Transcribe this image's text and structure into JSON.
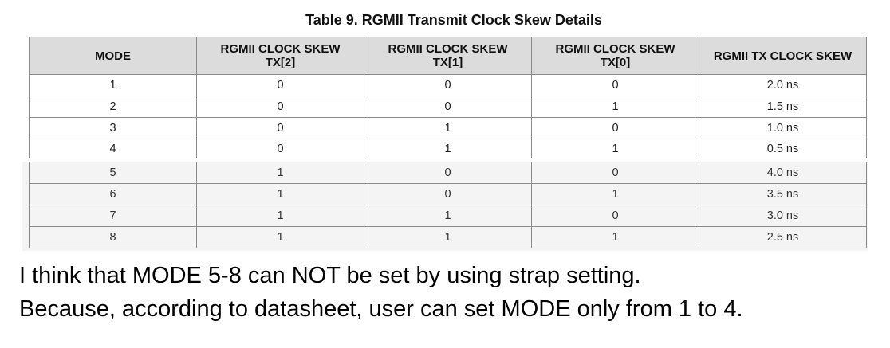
{
  "table": {
    "title": "Table 9. RGMII Transmit Clock Skew Details",
    "headers": [
      "MODE",
      "RGMII CLOCK SKEW TX[2]",
      "RGMII CLOCK SKEW TX[1]",
      "RGMII CLOCK SKEW TX[0]",
      "RGMII TX CLOCK SKEW"
    ],
    "rows": [
      [
        "1",
        "0",
        "0",
        "0",
        "2.0 ns"
      ],
      [
        "2",
        "0",
        "0",
        "1",
        "1.5 ns"
      ],
      [
        "3",
        "0",
        "1",
        "0",
        "1.0 ns"
      ],
      [
        "4",
        "0",
        "1",
        "1",
        "0.5 ns"
      ],
      [
        "5",
        "1",
        "0",
        "0",
        "4.0 ns"
      ],
      [
        "6",
        "1",
        "0",
        "1",
        "3.5 ns"
      ],
      [
        "7",
        "1",
        "1",
        "0",
        "3.0 ns"
      ],
      [
        "8",
        "1",
        "1",
        "1",
        "2.5 ns"
      ]
    ]
  },
  "notes": [
    "I think that MODE 5-8 can NOT be set by using strap setting.",
    "Because, according to datasheet, user can set MODE only from 1 to 4."
  ]
}
